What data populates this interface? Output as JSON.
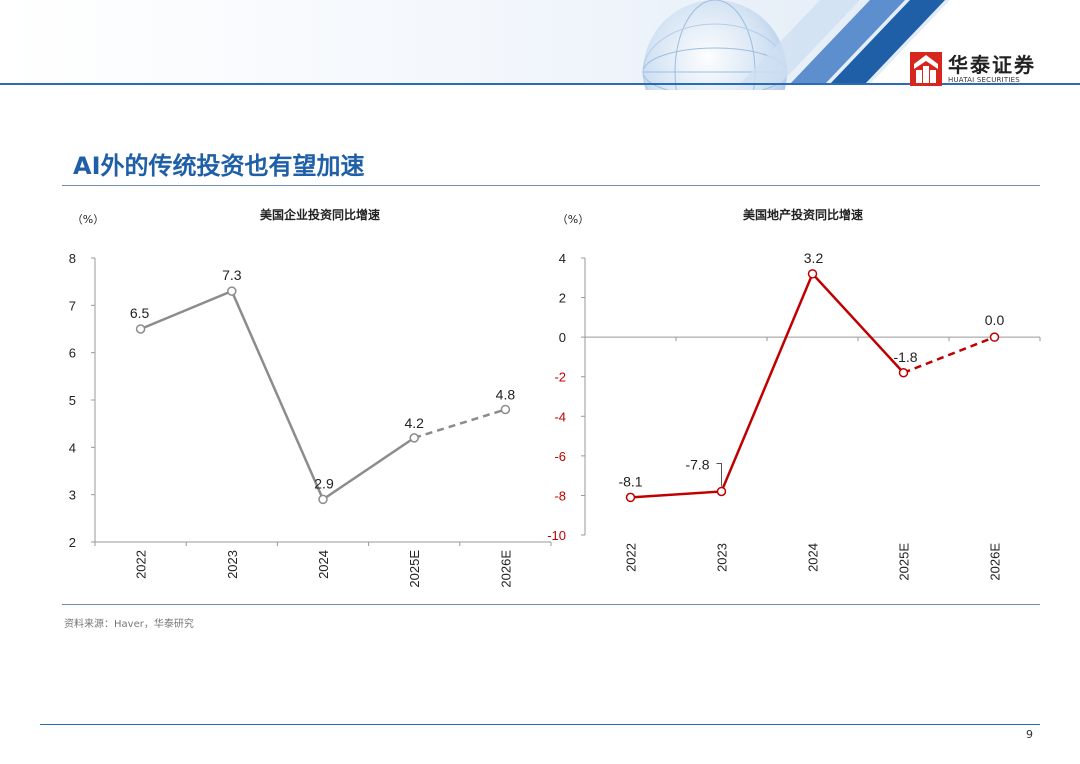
{
  "header": {
    "logo_cn": "华泰证券",
    "logo_en": "HUATAI SECURITIES"
  },
  "slide": {
    "title": "AI外的传统投资也有望加速",
    "source": "资料来源：Haver，华泰研究",
    "page_number": "9"
  },
  "colors": {
    "brand_blue": "#1f5fa8",
    "left_series": "#8c8c8c",
    "right_series": "#c00000",
    "logo_red": "#d7261e"
  },
  "chart_data": [
    {
      "type": "line",
      "title": "美国企业投资同比增速",
      "unit": "（%）",
      "categories": [
        "2022",
        "2023",
        "2024",
        "2025E",
        "2026E"
      ],
      "values": [
        6.5,
        7.3,
        2.9,
        4.2,
        4.8
      ],
      "labels": [
        "6.5",
        "7.3",
        "2.9",
        "4.2",
        "4.8"
      ],
      "forecast_from_index": 3,
      "ylim": [
        2,
        8
      ],
      "yticks": [
        "2",
        "3",
        "4",
        "5",
        "6",
        "7",
        "8"
      ],
      "grid": false,
      "color": "#8c8c8c"
    },
    {
      "type": "line",
      "title": "美国地产投资同比增速",
      "unit": "（%）",
      "categories": [
        "2022",
        "2023",
        "2024",
        "2025E",
        "2026E"
      ],
      "values": [
        -8.1,
        -7.8,
        3.2,
        -1.8,
        0.0
      ],
      "labels": [
        "-8.1",
        "-7.8",
        "3.2",
        "-1.8",
        "0.0"
      ],
      "forecast_from_index": 3,
      "ylim": [
        -10,
        4
      ],
      "yticks": [
        "-10",
        "-8",
        "-6",
        "-4",
        "-2",
        "0",
        "2",
        "4"
      ],
      "grid": false,
      "color": "#c00000"
    }
  ]
}
